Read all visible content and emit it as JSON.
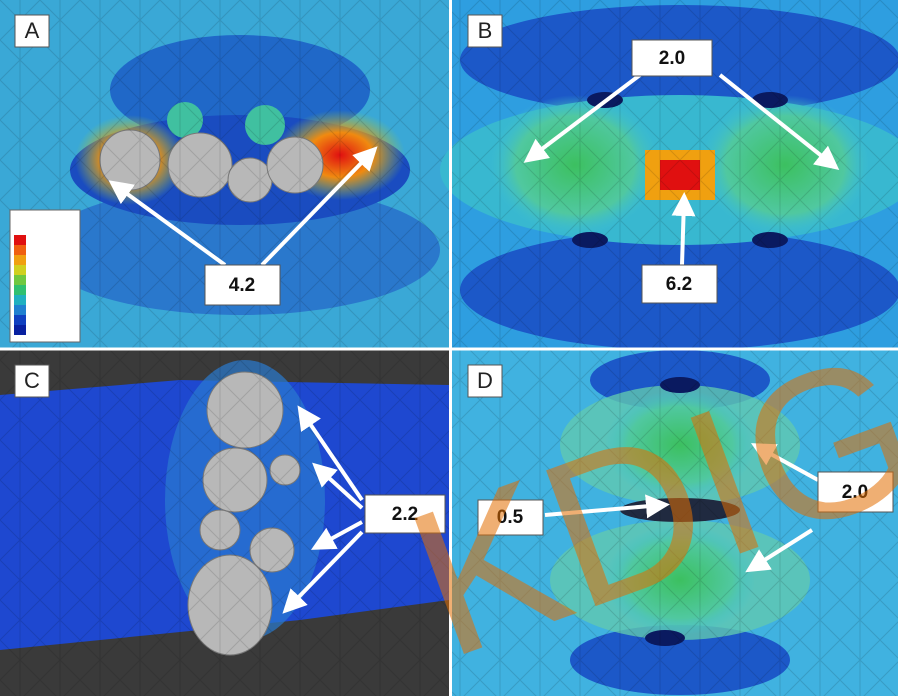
{
  "panels": [
    {
      "label": "A",
      "callouts": [
        "4.2"
      ]
    },
    {
      "label": "B",
      "callouts": [
        "2.0",
        "6.2"
      ]
    },
    {
      "label": "C",
      "callouts": [
        "2.2"
      ]
    },
    {
      "label": "D",
      "callouts": [
        "0.5",
        "2.0"
      ]
    }
  ],
  "watermark": "KDIG"
}
